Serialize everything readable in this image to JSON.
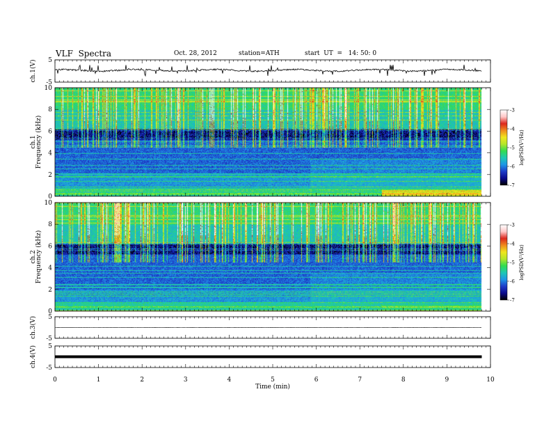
{
  "header": {
    "title": "VLF  Spectra",
    "date": "Oct. 28, 2012",
    "station": "station=ATH",
    "start": "start  UT  =   14: 50: 0"
  },
  "colorbar": {
    "label": "logPSD(V²/Hz)",
    "ticks": [
      "-3",
      "-4",
      "-5",
      "-6",
      "-7"
    ],
    "colors": [
      "#000000",
      "#0a0a8c",
      "#1e3cc8",
      "#1e96e6",
      "#1ec8b4",
      "#32dc50",
      "#b4e628",
      "#f0e61e",
      "#f08c1e",
      "#dc281e",
      "#ffc8c8",
      "#ffffff"
    ]
  },
  "chart_data": [
    {
      "type": "line",
      "name": "ch1-waveform",
      "ylabel": "ch.1(V)",
      "ylim": [
        -5,
        5
      ],
      "yticks": [
        "5",
        "-5"
      ],
      "mean_level": 0.3,
      "xlim": [
        0,
        10
      ]
    },
    {
      "type": "heatmap",
      "name": "ch1-spectrogram",
      "ylabel": "ch.1\nFrequency  (kHz)",
      "ylim": [
        0,
        10
      ],
      "yticks": [
        "0",
        "2",
        "4",
        "6",
        "8",
        "10"
      ],
      "xlim": [
        0,
        10
      ],
      "data_end_min": 9.8,
      "band_change_min": [
        5.85,
        7.5
      ]
    },
    {
      "type": "heatmap",
      "name": "ch2-spectrogram",
      "ylabel": "ch.2\nFrequency  (kHz)",
      "ylim": [
        0,
        10
      ],
      "yticks": [
        "0",
        "2",
        "4",
        "6",
        "8",
        "10"
      ],
      "xlim": [
        0,
        10
      ],
      "data_end_min": 9.8,
      "band_change_min": [
        5.85,
        7.5
      ]
    },
    {
      "type": "line",
      "name": "ch3-waveform",
      "ylabel": "ch.3(V)",
      "ylim": [
        -5,
        5
      ],
      "yticks": [
        "5",
        "-5"
      ],
      "mean_level": 0.0,
      "xlim": [
        0,
        10
      ]
    },
    {
      "type": "line",
      "name": "ch4-waveform",
      "ylabel": "ch.4(V)",
      "ylim": [
        -5,
        5
      ],
      "yticks": [
        "5",
        "-5"
      ],
      "mean_level": 0.0,
      "xlim": [
        0,
        10
      ],
      "xlabel": "Time  (min)",
      "xticks": [
        "0",
        "1",
        "2",
        "3",
        "4",
        "5",
        "6",
        "7",
        "8",
        "9",
        "10"
      ]
    }
  ]
}
